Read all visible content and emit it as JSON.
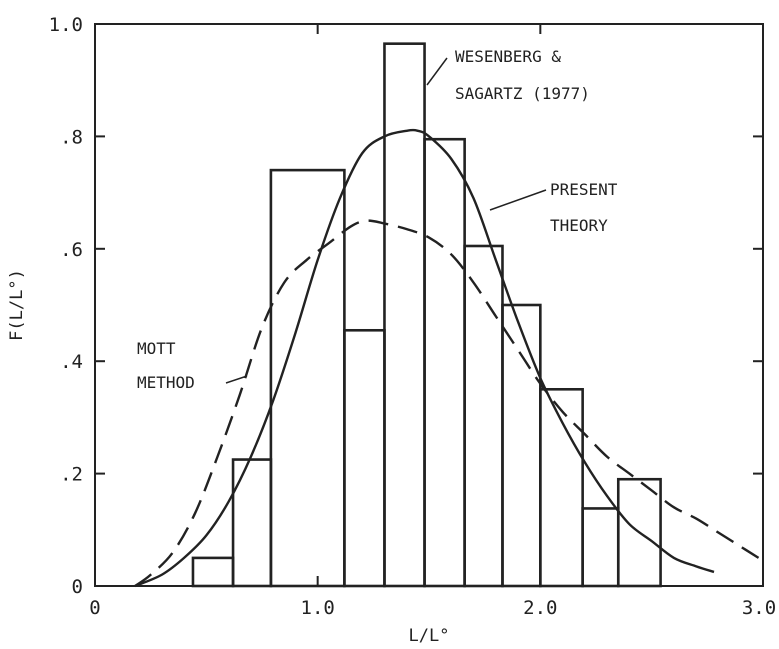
{
  "chart_data": {
    "type": "line",
    "xlabel": "L/L°",
    "ylabel": "F(L/L°)",
    "xlim": [
      0,
      3.0
    ],
    "ylim": [
      0,
      1.0
    ],
    "x_ticks": [
      {
        "value": 0,
        "label": "0"
      },
      {
        "value": 1.0,
        "label": "1.0"
      },
      {
        "value": 2.0,
        "label": "2.0"
      },
      {
        "value": 3.0,
        "label": "3.0"
      }
    ],
    "y_ticks": [
      {
        "value": 0,
        "label": "0"
      },
      {
        "value": 0.2,
        "label": ".2"
      },
      {
        "value": 0.4,
        "label": ".4"
      },
      {
        "value": 0.6,
        "label": ".6"
      },
      {
        "value": 0.8,
        "label": ".8"
      },
      {
        "value": 1.0,
        "label": "1.0"
      }
    ],
    "grid": false,
    "series": [
      {
        "name": "WESENBERG & SAGARTZ (1977)",
        "style": "histogram",
        "bins": [
          {
            "x0": 0.44,
            "x1": 0.62,
            "y": 0.05
          },
          {
            "x0": 0.62,
            "x1": 0.79,
            "y": 0.225
          },
          {
            "x0": 0.79,
            "x1": 1.12,
            "y": 0.74
          },
          {
            "x0": 1.12,
            "x1": 1.3,
            "y": 0.455
          },
          {
            "x0": 1.3,
            "x1": 1.48,
            "y": 0.965
          },
          {
            "x0": 1.48,
            "x1": 1.66,
            "y": 0.795
          },
          {
            "x0": 1.66,
            "x1": 1.83,
            "y": 0.605
          },
          {
            "x0": 1.83,
            "x1": 2.0,
            "y": 0.5
          },
          {
            "x0": 2.0,
            "x1": 2.19,
            "y": 0.35
          },
          {
            "x0": 2.19,
            "x1": 2.35,
            "y": 0.138
          },
          {
            "x0": 2.35,
            "x1": 2.54,
            "y": 0.19
          }
        ]
      },
      {
        "name": "PRESENT THEORY",
        "style": "solid",
        "x": [
          0.18,
          0.3,
          0.4,
          0.5,
          0.6,
          0.7,
          0.8,
          0.9,
          1.0,
          1.1,
          1.2,
          1.3,
          1.4,
          1.45,
          1.5,
          1.6,
          1.7,
          1.8,
          1.9,
          2.0,
          2.1,
          2.2,
          2.3,
          2.4,
          2.5,
          2.6,
          2.7,
          2.78
        ],
        "y": [
          0.0,
          0.02,
          0.05,
          0.09,
          0.15,
          0.23,
          0.33,
          0.45,
          0.58,
          0.69,
          0.77,
          0.8,
          0.81,
          0.81,
          0.8,
          0.76,
          0.69,
          0.58,
          0.47,
          0.37,
          0.29,
          0.22,
          0.16,
          0.11,
          0.08,
          0.05,
          0.035,
          0.025
        ]
      },
      {
        "name": "MOTT METHOD",
        "style": "dashed",
        "x": [
          0.18,
          0.25,
          0.35,
          0.45,
          0.55,
          0.65,
          0.75,
          0.85,
          0.95,
          1.05,
          1.15,
          1.22,
          1.3,
          1.4,
          1.5,
          1.6,
          1.7,
          1.8,
          1.9,
          2.0,
          2.1,
          2.2,
          2.3,
          2.4,
          2.5,
          2.6,
          2.7,
          2.8,
          2.9,
          2.98
        ],
        "y": [
          0.0,
          0.02,
          0.06,
          0.13,
          0.23,
          0.34,
          0.46,
          0.54,
          0.58,
          0.61,
          0.64,
          0.65,
          0.645,
          0.635,
          0.62,
          0.59,
          0.54,
          0.48,
          0.42,
          0.36,
          0.31,
          0.27,
          0.23,
          0.2,
          0.17,
          0.14,
          0.12,
          0.095,
          0.07,
          0.05
        ]
      }
    ],
    "annotations": {
      "wesenberg_line1": "WESENBERG &",
      "wesenberg_line2": "SAGARTZ (1977)",
      "present_line1": "PRESENT",
      "present_line2": "THEORY",
      "mott_line1": "MOTT",
      "mott_line2": "METHOD"
    }
  }
}
